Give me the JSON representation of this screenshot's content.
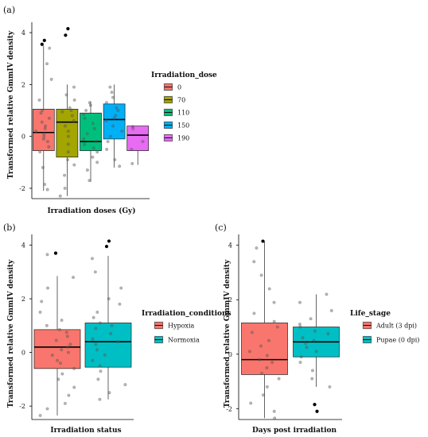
{
  "chart_data": [
    {
      "panel": "(a)",
      "type": "box",
      "xlabel": "Irradiation doses (Gy)",
      "ylabel": "Transformed relative GmmIV density",
      "yticks": [
        -2,
        0,
        2,
        4
      ],
      "ylim": [
        -2.4,
        4.4
      ],
      "legend": {
        "title": "Irradiation_dose",
        "placement": "right"
      },
      "groups": [
        {
          "name": "0",
          "color": "#F8766D",
          "q1": -0.55,
          "median": 0.15,
          "q3": 1.05,
          "whisker_low": -2.1,
          "whisker_high": 3.5,
          "outliers": [
            3.55,
            3.7
          ],
          "points": [
            -2.05,
            -1.85,
            -1.2,
            -0.6,
            -0.4,
            -0.2,
            -0.1,
            0.0,
            0.1,
            0.2,
            0.3,
            0.4,
            0.55,
            0.7,
            0.9,
            1.0,
            1.4,
            2.2,
            2.8,
            3.4
          ]
        },
        {
          "name": "70",
          "color": "#A3A500",
          "q1": -0.8,
          "median": 0.55,
          "q3": 1.05,
          "whisker_low": -2.3,
          "whisker_high": 2.0,
          "outliers": [
            3.9,
            4.15
          ],
          "points": [
            -2.3,
            -2.0,
            -1.5,
            -1.1,
            -0.9,
            -0.6,
            -0.3,
            0.0,
            0.2,
            0.4,
            0.6,
            0.8,
            0.95,
            1.0,
            1.1,
            1.4,
            1.6,
            1.9
          ]
        },
        {
          "name": "110",
          "color": "#00BF7D",
          "q1": -0.55,
          "median": -0.2,
          "q3": 0.9,
          "whisker_low": -1.75,
          "whisker_high": 1.35,
          "outliers": [],
          "points": [
            -1.7,
            -1.3,
            -1.0,
            -0.8,
            -0.6,
            -0.45,
            -0.3,
            -0.2,
            -0.1,
            0.1,
            0.3,
            0.5,
            0.7,
            0.85,
            1.0,
            1.2,
            1.3
          ]
        },
        {
          "name": "150",
          "color": "#00B0F6",
          "q1": -0.1,
          "median": 0.65,
          "q3": 1.25,
          "whisker_low": -1.2,
          "whisker_high": 2.0,
          "outliers": [],
          "points": [
            -1.15,
            -0.9,
            -0.5,
            -0.2,
            0.0,
            0.2,
            0.4,
            0.6,
            0.7,
            0.8,
            1.0,
            1.1,
            1.3,
            1.5,
            1.7,
            1.9
          ]
        },
        {
          "name": "190",
          "color": "#E76BF3",
          "q1": -0.55,
          "median": 0.05,
          "q3": 0.4,
          "whisker_low": -1.1,
          "whisker_high": 0.4,
          "outliers": [],
          "points": [
            -1.05,
            -0.5,
            -0.2,
            0.3,
            0.38
          ]
        }
      ]
    },
    {
      "panel": "(b)",
      "type": "box",
      "xlabel": "Irradiation status",
      "ylabel": "Transformed relative GmmIV density",
      "yticks": [
        -2,
        0,
        2,
        4
      ],
      "ylim": [
        -2.5,
        4.4
      ],
      "legend": {
        "title": "Irradiation_conditions",
        "placement": "right"
      },
      "groups": [
        {
          "name": "Hypoxia",
          "color": "#F8766D",
          "q1": -0.6,
          "median": 0.2,
          "q3": 0.85,
          "whisker_low": -2.35,
          "whisker_high": 2.85,
          "outliers": [
            3.7
          ],
          "points": [
            -2.35,
            -2.1,
            -1.9,
            -1.6,
            -1.3,
            -1.0,
            -0.8,
            -0.6,
            -0.4,
            -0.3,
            -0.1,
            0.0,
            0.1,
            0.2,
            0.3,
            0.45,
            0.6,
            0.75,
            0.85,
            1.0,
            1.2,
            1.5,
            1.9,
            2.4,
            2.8,
            3.65
          ]
        },
        {
          "name": "Normoxia",
          "color": "#00BFC4",
          "q1": -0.55,
          "median": 0.4,
          "q3": 1.1,
          "whisker_low": -1.75,
          "whisker_high": 3.6,
          "outliers": [
            3.95,
            4.15
          ],
          "points": [
            -1.75,
            -1.5,
            -1.2,
            -1.0,
            -0.7,
            -0.5,
            -0.3,
            -0.1,
            0.1,
            0.3,
            0.4,
            0.5,
            0.7,
            0.9,
            1.0,
            1.1,
            1.3,
            1.5,
            1.8,
            2.0,
            2.4,
            3.0,
            3.5
          ]
        }
      ]
    },
    {
      "panel": "(c)",
      "type": "box",
      "xlabel": "Days post irradiation",
      "ylabel": "Transformed relative GmmIV density",
      "yticks": [
        -2,
        0,
        2,
        4
      ],
      "ylim": [
        -2.4,
        4.4
      ],
      "legend": {
        "title": "Life_stage",
        "placement": "right"
      },
      "groups": [
        {
          "name": "Adult (3 dpi)",
          "color": "#F8766D",
          "q1": -0.75,
          "median": -0.2,
          "q3": 1.15,
          "whisker_low": -2.35,
          "whisker_high": 4.15,
          "outliers": [
            4.15
          ],
          "points": [
            -2.35,
            -2.1,
            -1.8,
            -1.5,
            -1.2,
            -0.9,
            -0.7,
            -0.5,
            -0.3,
            -0.2,
            -0.05,
            0.1,
            0.3,
            0.5,
            0.8,
            1.0,
            1.2,
            1.5,
            1.9,
            2.4,
            2.9,
            3.4,
            3.9
          ]
        },
        {
          "name": "Pupae (0 dpi)",
          "color": "#00BFC4",
          "q1": -0.1,
          "median": 0.45,
          "q3": 1.0,
          "whisker_low": -1.2,
          "whisker_high": 2.2,
          "outliers": [
            -1.85,
            -2.1
          ],
          "points": [
            -1.2,
            -0.9,
            -0.6,
            -0.3,
            -0.1,
            0.1,
            0.25,
            0.4,
            0.5,
            0.6,
            0.75,
            0.85,
            1.0,
            1.1,
            1.3,
            1.6,
            1.9,
            2.2
          ]
        }
      ]
    }
  ]
}
